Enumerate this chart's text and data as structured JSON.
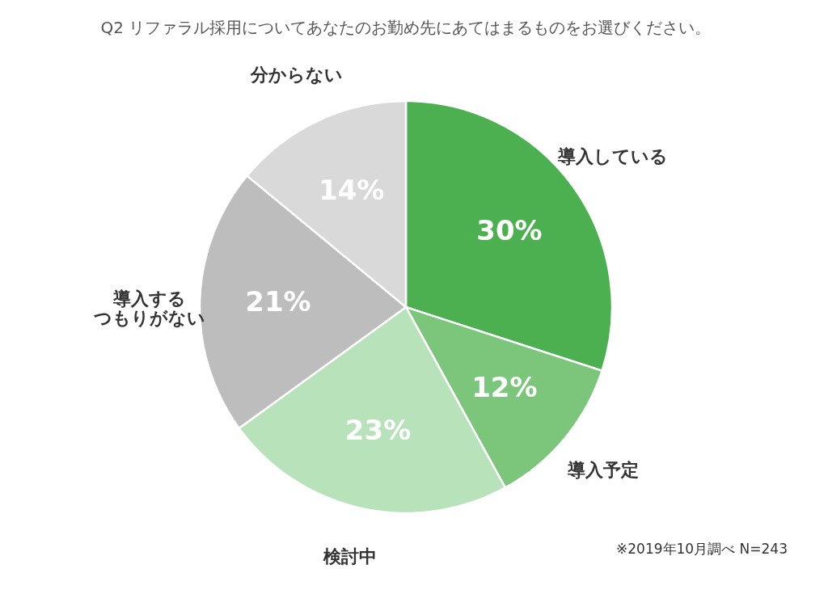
{
  "chart_data": {
    "type": "pie",
    "title": "Q2 リファラル採用についてあなたのお勤め先にあてはまるものをお選びください。",
    "categories": [
      "導入している",
      "導入予定",
      "検討中",
      "導入するつもりがない",
      "分からない"
    ],
    "values": [
      30,
      12,
      23,
      21,
      14
    ],
    "colors": [
      "#4caf50",
      "#7bc67b",
      "#b8e2b9",
      "#bdbdbd",
      "#d9d9d9"
    ],
    "value_labels": [
      "30%",
      "12%",
      "23%",
      "21%",
      "14%"
    ],
    "legend": false,
    "annotations": [
      "※2019年10月調べ N=243"
    ]
  }
}
